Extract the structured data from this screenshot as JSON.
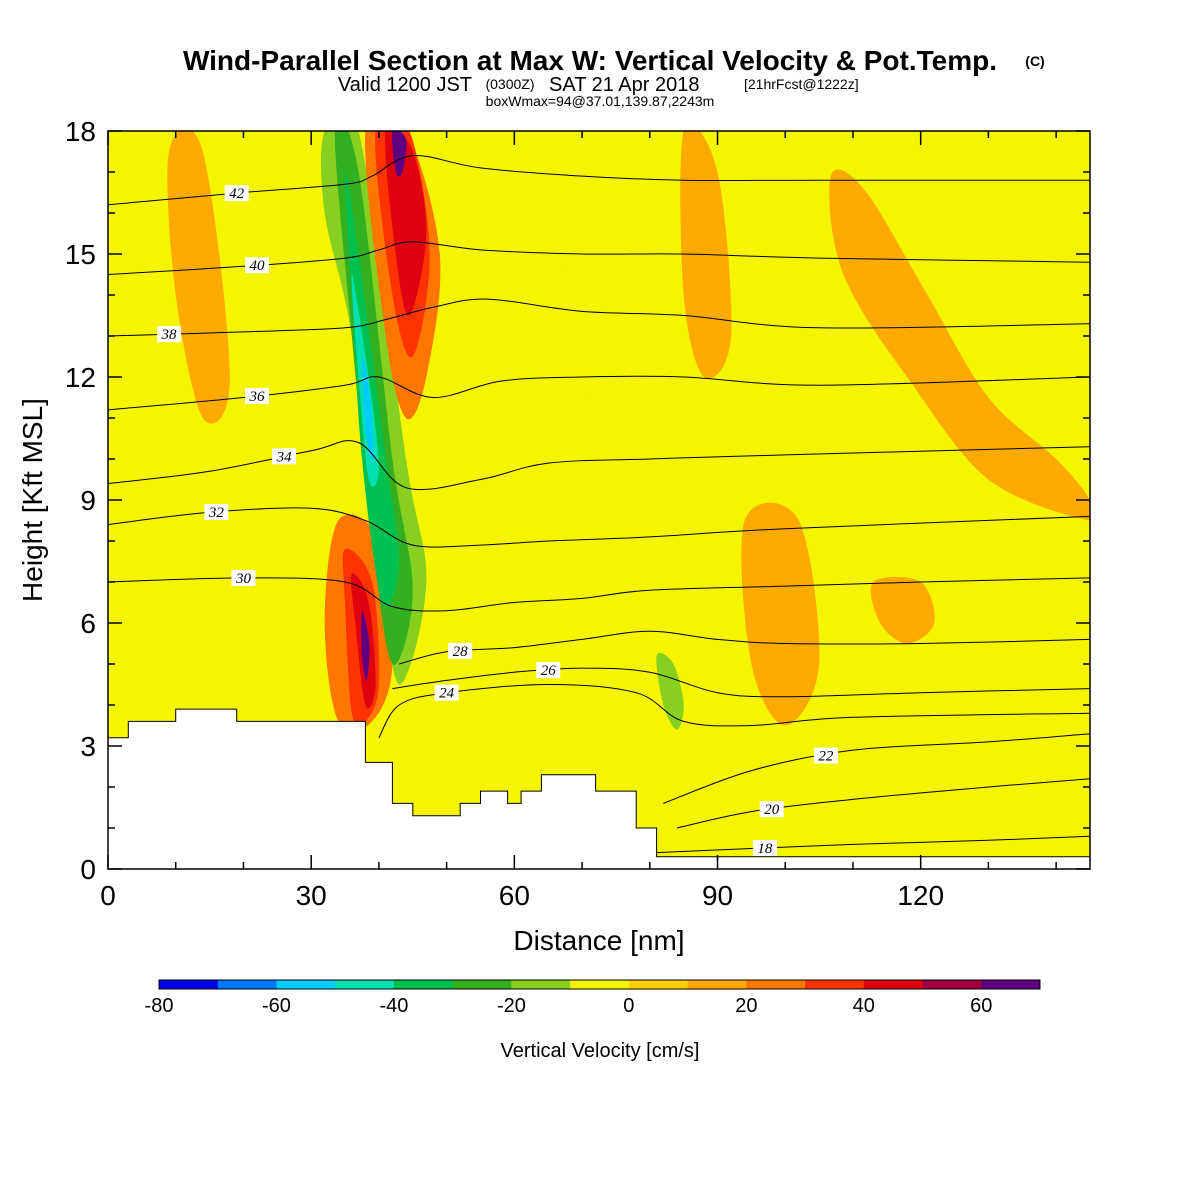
{
  "chart_data": {
    "type": "heatmap",
    "title": "Wind-Parallel Section at Max W: Vertical Velocity & Pot.Temp.",
    "title_copyright": "(C)",
    "subtitle": {
      "valid_prefix": "Valid 1200 JST",
      "utc": "(0300Z)",
      "valid_date": "SAT 21 Apr 2018",
      "forecast": "[21hrFcst@1222z]"
    },
    "subtitle2": "boxWmax=94@37.01,139.87,2243m",
    "xlabel": "Distance [nm]",
    "ylabel": "Height [Kft MSL]",
    "xlim": [
      0,
      145
    ],
    "ylim": [
      0,
      18
    ],
    "x_ticks": [
      0,
      30,
      60,
      90,
      120
    ],
    "y_ticks": [
      0,
      3,
      6,
      9,
      12,
      15,
      18
    ],
    "colorbar": {
      "label": "Vertical Velocity [cm/s]",
      "ticks": [
        -80,
        -60,
        -40,
        -20,
        0,
        20,
        40,
        60
      ],
      "levels": [
        -80,
        -70,
        -60,
        -50,
        -40,
        -30,
        -20,
        -10,
        0,
        10,
        20,
        30,
        40,
        50,
        60,
        70
      ],
      "colors": [
        "#0000ee",
        "#0077ff",
        "#00ccff",
        "#00e0b0",
        "#00c050",
        "#33b020",
        "#88d020",
        "#f5f500",
        "#ffd000",
        "#ffaa00",
        "#ff7700",
        "#ff3300",
        "#e00010",
        "#a00040",
        "#600080"
      ]
    },
    "background_color": "#f5f500",
    "terrain_profile": {
      "x": [
        0,
        3,
        3,
        10,
        10,
        19,
        19,
        38,
        38,
        42,
        42,
        45,
        45,
        52,
        52,
        55,
        55,
        59,
        59,
        61,
        61,
        64,
        64,
        67,
        67,
        72,
        72,
        78,
        78,
        81,
        81,
        145
      ],
      "height": [
        3.2,
        3.2,
        3.6,
        3.6,
        3.9,
        3.9,
        3.6,
        3.6,
        2.6,
        2.6,
        1.6,
        1.6,
        1.3,
        1.3,
        1.6,
        1.6,
        1.9,
        1.9,
        1.6,
        1.6,
        1.9,
        1.9,
        2.3,
        2.3,
        2.3,
        2.3,
        1.9,
        1.9,
        1.0,
        1.0,
        0.3,
        0.3
      ]
    },
    "velocity_regions": [
      {
        "class": 20,
        "x": [
          34,
          40,
          42,
          39,
          34,
          32
        ],
        "height": [
          8.5,
          8.0,
          5.0,
          3.6,
          3.6,
          6.0
        ]
      },
      {
        "class": 30,
        "x": [
          35,
          39,
          40,
          38,
          36,
          35
        ],
        "height": [
          7.8,
          7.0,
          4.5,
          3.6,
          3.8,
          6.5
        ]
      },
      {
        "class": 40,
        "x": [
          36,
          38.5,
          39.5,
          38,
          36.5
        ],
        "height": [
          7.2,
          6.5,
          4.5,
          4.0,
          6.0
        ]
      },
      {
        "class": 60,
        "x": [
          37.5,
          38.6,
          38.2,
          37.5
        ],
        "height": [
          6.3,
          5.5,
          4.6,
          5.2
        ]
      },
      {
        "class": -20,
        "x": [
          32,
          37,
          44,
          47,
          43,
          40,
          36,
          32
        ],
        "height": [
          18,
          18,
          10,
          7.0,
          4.5,
          7.5,
          13,
          16
        ]
      },
      {
        "class": -30,
        "x": [
          33.5,
          37,
          42,
          45,
          42,
          39,
          36
        ],
        "height": [
          18,
          17,
          10,
          6.8,
          5.0,
          8.0,
          13
        ]
      },
      {
        "class": -40,
        "x": [
          35,
          37,
          41,
          43,
          40.5,
          37.5,
          36
        ],
        "height": [
          17,
          15,
          10,
          7.5,
          6.5,
          10,
          14
        ]
      },
      {
        "class": -50,
        "x": [
          36,
          38.5,
          40,
          38.5,
          37
        ],
        "height": [
          14.5,
          12,
          9.8,
          9.5,
          12
        ]
      },
      {
        "class": -60,
        "x": [
          37.5,
          38.7,
          39.2,
          38.2
        ],
        "height": [
          12.5,
          11.5,
          10,
          10.5
        ]
      },
      {
        "class": 20,
        "x": [
          38,
          44,
          49,
          47,
          44,
          41
        ],
        "height": [
          18,
          18,
          15,
          12,
          11,
          13
        ]
      },
      {
        "class": 30,
        "x": [
          39.5,
          44.5,
          47.5,
          45,
          42
        ],
        "height": [
          18,
          18,
          15,
          12.5,
          14
        ]
      },
      {
        "class": 40,
        "x": [
          41,
          45,
          47,
          44.5,
          42.5
        ],
        "height": [
          18,
          17.5,
          15.5,
          13.5,
          15
        ]
      },
      {
        "class": 60,
        "x": [
          42,
          44,
          43.5,
          42.5
        ],
        "height": [
          18,
          17.8,
          17,
          17
        ]
      },
      {
        "class": -10,
        "x": [
          51,
          58,
          54,
          52
        ],
        "height": [
          18,
          18,
          16.5,
          17
        ]
      },
      {
        "class": -10,
        "x": [
          67,
          69,
          72,
          71,
          70,
          69
        ],
        "height": [
          16,
          15,
          9,
          7,
          9,
          12
        ]
      },
      {
        "class": -10,
        "x": [
          74,
          78,
          77,
          75
        ],
        "height": [
          18,
          18,
          16.5,
          16.8
        ]
      },
      {
        "class": -10,
        "x": [
          80,
          84,
          86,
          85,
          82,
          80
        ],
        "height": [
          5.8,
          5.5,
          4,
          3.0,
          3.8,
          5
        ]
      },
      {
        "class": -20,
        "x": [
          81,
          83.5,
          85,
          84,
          82
        ],
        "height": [
          5.2,
          5.0,
          4,
          3.4,
          4
        ]
      },
      {
        "class": 10,
        "x": [
          107,
          112,
          121,
          130,
          140,
          145,
          145,
          130,
          118,
          110,
          107
        ],
        "height": [
          17,
          16.5,
          14,
          11.5,
          10,
          9,
          8.5,
          9.5,
          12,
          14,
          15.5
        ]
      },
      {
        "class": 10,
        "x": [
          9,
          14,
          18,
          14,
          10
        ],
        "height": [
          17.5,
          17.5,
          12,
          11,
          14
        ]
      },
      {
        "class": 10,
        "x": [
          94,
          102,
          105,
          100,
          95
        ],
        "height": [
          8.5,
          8.5,
          5,
          3.5,
          5
        ]
      },
      {
        "class": 10,
        "x": [
          113,
          120,
          122,
          118,
          114
        ],
        "height": [
          7,
          7,
          6,
          5.5,
          6
        ]
      },
      {
        "class": 10,
        "x": [
          85,
          90,
          92,
          88,
          85
        ],
        "height": [
          18,
          17,
          13,
          12,
          14
        ]
      }
    ],
    "contours": [
      {
        "theta": 18,
        "x": [
          81,
          95,
          110,
          130,
          145
        ],
        "height": [
          0.4,
          0.5,
          0.6,
          0.7,
          0.8
        ],
        "label_at": 97
      },
      {
        "theta": 20,
        "x": [
          84,
          95,
          110,
          130,
          145
        ],
        "height": [
          1.0,
          1.4,
          1.7,
          2.0,
          2.2
        ],
        "label_at": 98
      },
      {
        "theta": 22,
        "x": [
          82,
          95,
          110,
          130,
          145
        ],
        "height": [
          1.6,
          2.4,
          2.9,
          3.1,
          3.3
        ],
        "label_at": 106
      },
      {
        "theta": 24,
        "x": [
          40,
          43,
          50,
          65,
          78,
          85,
          95,
          110,
          145
        ],
        "height": [
          3.2,
          4.0,
          4.3,
          4.5,
          4.3,
          3.6,
          3.5,
          3.7,
          3.8
        ],
        "label_at": 50
      },
      {
        "theta": 26,
        "x": [
          42,
          50,
          60,
          70,
          80,
          90,
          100,
          120,
          145
        ],
        "height": [
          4.4,
          4.6,
          4.8,
          4.9,
          4.8,
          4.3,
          4.2,
          4.3,
          4.4
        ],
        "label_at": 65
      },
      {
        "theta": 28,
        "x": [
          43,
          50,
          60,
          70,
          80,
          90,
          100,
          120,
          145
        ],
        "height": [
          5.0,
          5.3,
          5.4,
          5.6,
          5.8,
          5.6,
          5.5,
          5.5,
          5.6
        ],
        "label_at": 52
      },
      {
        "theta": 30,
        "x": [
          0,
          20,
          35,
          42,
          50,
          60,
          70,
          80,
          100,
          120,
          145
        ],
        "height": [
          7.0,
          7.1,
          7.0,
          6.4,
          6.3,
          6.5,
          6.6,
          6.8,
          6.9,
          7.0,
          7.1
        ],
        "label_at": 20
      },
      {
        "theta": 32,
        "x": [
          0,
          15,
          30,
          38,
          45,
          55,
          65,
          80,
          100,
          145
        ],
        "height": [
          8.4,
          8.7,
          8.8,
          8.5,
          7.9,
          7.9,
          8.0,
          8.1,
          8.3,
          8.6
        ],
        "label_at": 16
      },
      {
        "theta": 34,
        "x": [
          0,
          15,
          30,
          37,
          44,
          55,
          65,
          80,
          100,
          145
        ],
        "height": [
          9.4,
          9.7,
          10.2,
          10.4,
          9.3,
          9.5,
          9.9,
          10.0,
          10.1,
          10.3
        ],
        "label_at": 26
      },
      {
        "theta": 36,
        "x": [
          0,
          20,
          35,
          40,
          48,
          58,
          70,
          85,
          105,
          145
        ],
        "height": [
          11.2,
          11.5,
          11.8,
          12.0,
          11.5,
          11.9,
          12.0,
          12.0,
          11.8,
          12.0
        ],
        "label_at": 22
      },
      {
        "theta": 38,
        "x": [
          0,
          20,
          35,
          41,
          48,
          56,
          70,
          85,
          105,
          145
        ],
        "height": [
          13.0,
          13.1,
          13.2,
          13.4,
          13.7,
          13.9,
          13.6,
          13.5,
          13.2,
          13.3
        ],
        "label_at": 9
      },
      {
        "theta": 40,
        "x": [
          0,
          20,
          35,
          40,
          45,
          55,
          70,
          85,
          105,
          145
        ],
        "height": [
          14.5,
          14.7,
          14.9,
          15.1,
          15.3,
          15.1,
          15.0,
          15.0,
          14.9,
          14.8
        ],
        "label_at": 22
      },
      {
        "theta": 42,
        "x": [
          0,
          20,
          35,
          39,
          45,
          55,
          70,
          85,
          105,
          145
        ],
        "height": [
          16.2,
          16.5,
          16.7,
          16.9,
          17.4,
          17.1,
          16.9,
          16.8,
          16.8,
          16.8
        ],
        "label_at": 19
      }
    ]
  }
}
